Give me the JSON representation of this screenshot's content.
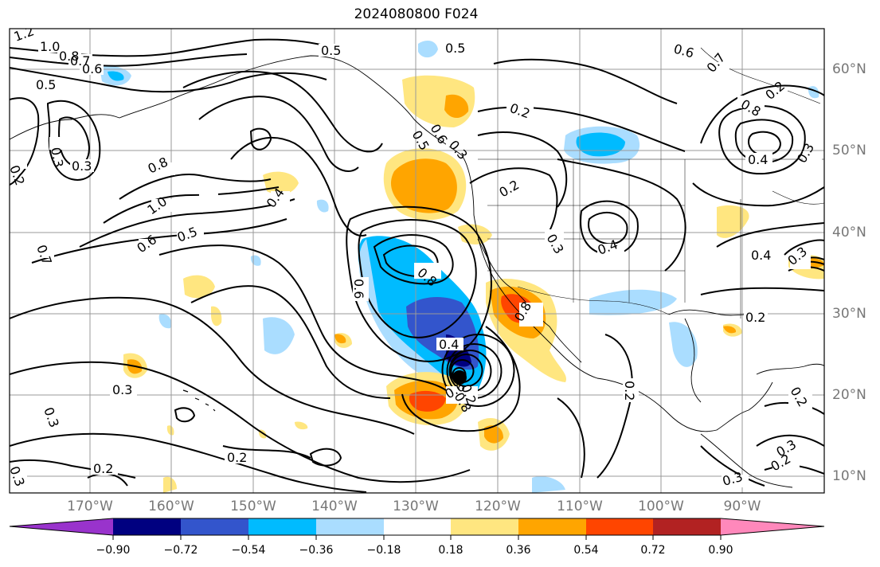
{
  "title": "2024080800 F024",
  "lat_labels": [
    "60°N",
    "50°N",
    "40°N",
    "30°N",
    "20°N",
    "10°N"
  ],
  "lon_labels": [
    "170°W",
    "160°W",
    "150°W",
    "140°W",
    "130°W",
    "120°W",
    "110°W",
    "100°W",
    "90°W"
  ],
  "colorbar": {
    "ticks": [
      "−0.90",
      "−0.72",
      "−0.54",
      "−0.36",
      "−0.18",
      "0.18",
      "0.36",
      "0.54",
      "0.72",
      "0.90"
    ],
    "colors": [
      "#9933cc",
      "#000080",
      "#3355cc",
      "#00bbff",
      "#aaddff",
      "#ffffff",
      "#ffe680",
      "#ffa500",
      "#ff4500",
      "#b22222",
      "#ff88bb"
    ]
  },
  "contour_labels": [
    "1.2",
    "1.0",
    "0.8",
    "0.7",
    "0.6",
    "0.5",
    "0.3",
    "0.2",
    "0.3",
    "0.5",
    "0.5",
    "0.6",
    "0.7",
    "0.8",
    "0.2",
    "0.4",
    "0.3",
    "0.8",
    "1.0",
    "0.5",
    "0.6",
    "0.7",
    "0.5",
    "0.6",
    "0.2",
    "0.3",
    "0.2",
    "0.3",
    "0.4",
    "0.4",
    "0.8",
    "0.6",
    "0.4",
    "0.6",
    "0.3",
    "0.8",
    "0.2",
    "0.2",
    "0.3",
    "0.3",
    "0.2",
    "0.2",
    "0.3",
    "0.2",
    "0.3",
    "0.4",
    "0.2",
    "0.2",
    "0.3",
    "0.8"
  ]
}
